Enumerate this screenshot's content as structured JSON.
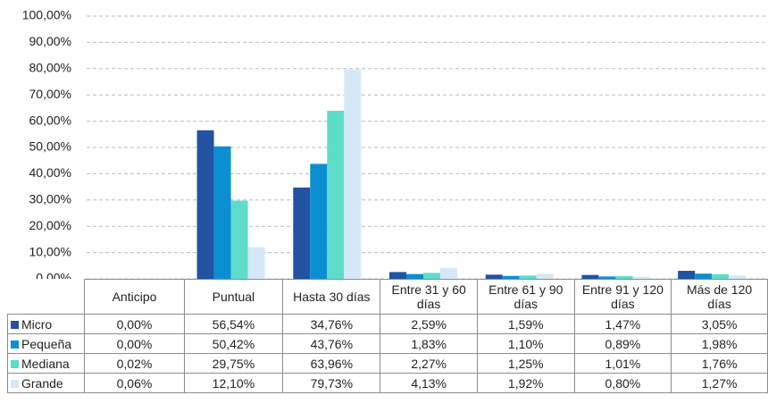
{
  "chart_data": {
    "type": "bar",
    "categories": [
      "Anticipo",
      "Puntual",
      "Hasta 30 días",
      "Entre 31 y 60 días",
      "Entre 61 y 90 días",
      "Entre 91 y 120 días",
      "Más de 120 días"
    ],
    "series": [
      {
        "name": "Micro",
        "color": "#2253a3",
        "values": [
          0.0,
          56.54,
          34.76,
          2.59,
          1.59,
          1.47,
          3.05
        ],
        "value_labels": [
          "0,00%",
          "56,54%",
          "34,76%",
          "2,59%",
          "1,59%",
          "1,47%",
          "3,05%"
        ]
      },
      {
        "name": "Pequeña",
        "color": "#0b8fd3",
        "values": [
          0.0,
          50.42,
          43.76,
          1.83,
          1.1,
          0.89,
          1.98
        ],
        "value_labels": [
          "0,00%",
          "50,42%",
          "43,76%",
          "1,83%",
          "1,10%",
          "0,89%",
          "1,98%"
        ]
      },
      {
        "name": "Mediana",
        "color": "#5cdcc9",
        "values": [
          0.02,
          29.75,
          63.96,
          2.27,
          1.25,
          1.01,
          1.76
        ],
        "value_labels": [
          "0,02%",
          "29,75%",
          "63,96%",
          "2,27%",
          "1,25%",
          "1,01%",
          "1,76%"
        ]
      },
      {
        "name": "Grande",
        "color": "#d5e8f7",
        "values": [
          0.06,
          12.1,
          79.73,
          4.13,
          1.92,
          0.8,
          1.27
        ],
        "value_labels": [
          "0,06%",
          "12,10%",
          "79,73%",
          "4,13%",
          "1,92%",
          "0,80%",
          "1,27%"
        ]
      }
    ],
    "ylim": [
      0,
      100
    ],
    "yticks": [
      {
        "value": 0,
        "label": "0,00%"
      },
      {
        "value": 10,
        "label": "10,00%"
      },
      {
        "value": 20,
        "label": "20,00%"
      },
      {
        "value": 30,
        "label": "30,00%"
      },
      {
        "value": 40,
        "label": "40,00%"
      },
      {
        "value": 50,
        "label": "50,00%"
      },
      {
        "value": 60,
        "label": "60,00%"
      },
      {
        "value": 70,
        "label": "70,00%"
      },
      {
        "value": 80,
        "label": "80,00%"
      },
      {
        "value": 90,
        "label": "90,00%"
      },
      {
        "value": 100,
        "label": "100,00%"
      }
    ],
    "grid": true
  }
}
